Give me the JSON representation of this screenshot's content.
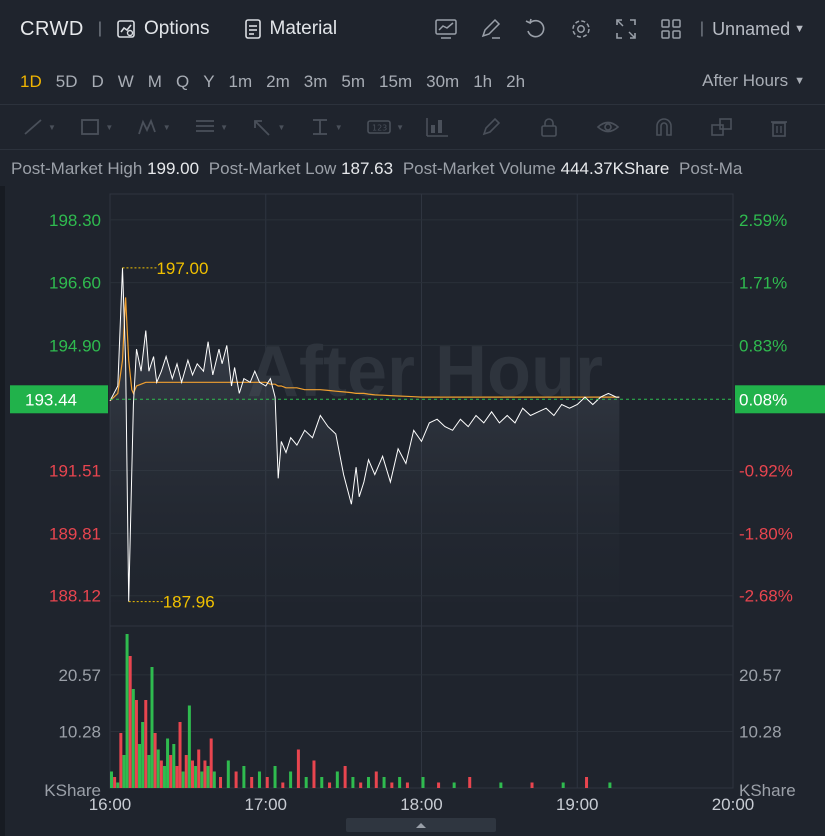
{
  "header": {
    "ticker": "CRWD",
    "options_label": "Options",
    "material_label": "Material",
    "layout_name": "Unnamed",
    "icons": [
      "indicator-icon",
      "draw-icon",
      "refresh-icon",
      "settings-icon",
      "fullscreen-icon",
      "layout-grid-icon"
    ]
  },
  "periods": {
    "items": [
      "1D",
      "5D",
      "D",
      "W",
      "M",
      "Q",
      "Y",
      "1m",
      "2m",
      "3m",
      "5m",
      "15m",
      "30m",
      "1h",
      "2h"
    ],
    "active": "1D",
    "session_label": "After Hours"
  },
  "drawing_tools": [
    "line-tool-icon",
    "rectangle-tool-icon",
    "pattern-tool-icon",
    "fib-tool-icon",
    "arrow-tool-icon",
    "measure-tool-icon",
    "price-label-tool-icon",
    "position-tool-icon",
    "pencil-icon",
    "lock-icon",
    "eye-icon",
    "magnet-icon",
    "copy-icon",
    "trash-icon"
  ],
  "stats": {
    "high_label": "Post-Market High",
    "high_value": "199.00",
    "low_label": "Post-Market Low",
    "low_value": "187.63",
    "volume_label": "Post-Market Volume",
    "volume_value": "444.37KShare",
    "more_label": "Post-Ma"
  },
  "colors": {
    "background": "#1f242d",
    "up": "#2fbb4f",
    "down": "#e8454f",
    "price_line": "#ffffff",
    "avg_line": "#f0a030",
    "marker": "#f0c000",
    "current_price_bg": "#21b24b"
  },
  "chart_data": {
    "type": "line",
    "watermark": "After Hour",
    "x_ticks": [
      "16:00",
      "17:00",
      "18:00",
      "19:00",
      "20:00"
    ],
    "price_ticks_left": [
      "198.30",
      "196.60",
      "194.90",
      "191.51",
      "189.81",
      "188.12"
    ],
    "pct_ticks_right": [
      "2.59%",
      "1.71%",
      "0.83%",
      "-0.92%",
      "-1.80%",
      "-2.68%"
    ],
    "current_price": "193.44",
    "current_pct": "0.08%",
    "high_marker": "197.00",
    "low_marker": "187.96",
    "volume_ticks": [
      "20.57",
      "10.28"
    ],
    "volume_unit": "KShare",
    "price_series": {
      "x_hours": [
        16.0,
        16.05,
        16.08,
        16.1,
        16.12,
        16.14,
        16.15,
        16.17,
        16.2,
        16.23,
        16.25,
        16.28,
        16.3,
        16.33,
        16.36,
        16.4,
        16.43,
        16.46,
        16.5,
        16.53,
        16.56,
        16.6,
        16.63,
        16.66,
        16.7,
        16.72,
        16.75,
        16.78,
        16.8,
        16.83,
        16.86,
        16.9,
        16.93,
        16.96,
        17.0,
        17.03,
        17.06,
        17.08,
        17.1,
        17.13,
        17.16,
        17.2,
        17.25,
        17.3,
        17.35,
        17.4,
        17.45,
        17.5,
        17.55,
        17.58,
        17.6,
        17.63,
        17.66,
        17.7,
        17.75,
        17.8,
        17.85,
        17.9,
        17.95,
        18.0,
        18.05,
        18.1,
        18.15,
        18.2,
        18.25,
        18.3,
        18.35,
        18.4,
        18.45,
        18.5,
        18.55,
        18.6,
        18.65,
        18.7,
        18.75,
        18.8,
        18.85,
        18.9,
        18.95,
        19.0,
        19.05,
        19.1,
        19.15,
        19.2,
        19.25,
        19.27
      ],
      "prices": [
        193.4,
        193.8,
        197.0,
        194.5,
        187.96,
        191.5,
        193.3,
        194.8,
        194.2,
        195.3,
        194.2,
        194.6,
        193.9,
        194.2,
        194.6,
        194.0,
        194.4,
        193.9,
        194.5,
        194.1,
        194.4,
        194.2,
        195.0,
        194.1,
        194.8,
        194.4,
        194.9,
        193.8,
        194.3,
        193.6,
        194.0,
        193.9,
        194.2,
        193.9,
        193.8,
        194.0,
        193.5,
        191.3,
        192.3,
        192.0,
        192.4,
        192.2,
        192.6,
        192.4,
        193.0,
        192.7,
        192.5,
        191.4,
        190.6,
        191.6,
        190.8,
        191.2,
        191.8,
        191.4,
        191.9,
        191.2,
        192.1,
        191.7,
        192.6,
        192.3,
        192.8,
        192.9,
        192.7,
        192.6,
        192.9,
        192.7,
        193.0,
        192.8,
        193.1,
        192.8,
        193.0,
        192.8,
        193.2,
        193.0,
        193.1,
        193.2,
        193.0,
        193.3,
        193.2,
        193.3,
        193.5,
        193.3,
        193.5,
        193.6,
        193.5,
        193.5
      ],
      "avg_prices": [
        193.4,
        193.6,
        194.5,
        196.2,
        194.5,
        193.7,
        193.6,
        193.8,
        193.85,
        193.9,
        193.9,
        193.9,
        193.9,
        193.9,
        193.9,
        193.9,
        193.9,
        193.9,
        193.9,
        193.9,
        193.9,
        193.9,
        193.9,
        193.9,
        193.9,
        193.9,
        193.9,
        193.9,
        193.9,
        193.9,
        193.9,
        193.9,
        193.9,
        193.9,
        193.9,
        193.85,
        193.85,
        193.8,
        193.8,
        193.75,
        193.75,
        193.75,
        193.7,
        193.7,
        193.7,
        193.68,
        193.66,
        193.64,
        193.62,
        193.6,
        193.6,
        193.6,
        193.58,
        193.56,
        193.55,
        193.54,
        193.53,
        193.52,
        193.51,
        193.5,
        193.5,
        193.5,
        193.5,
        193.5,
        193.5,
        193.5,
        193.5,
        193.5,
        193.5,
        193.5,
        193.5,
        193.5,
        193.5,
        193.5,
        193.5,
        193.5,
        193.5,
        193.5,
        193.5,
        193.5,
        193.5,
        193.5,
        193.5,
        193.5,
        193.5,
        193.5
      ]
    },
    "volume_series": {
      "x_hours": [
        16.0,
        16.02,
        16.04,
        16.06,
        16.08,
        16.1,
        16.12,
        16.14,
        16.16,
        16.18,
        16.2,
        16.22,
        16.24,
        16.26,
        16.28,
        16.3,
        16.32,
        16.34,
        16.36,
        16.38,
        16.4,
        16.42,
        16.44,
        16.46,
        16.48,
        16.5,
        16.52,
        16.54,
        16.56,
        16.58,
        16.6,
        16.62,
        16.64,
        16.66,
        16.7,
        16.75,
        16.8,
        16.85,
        16.9,
        16.95,
        17.0,
        17.05,
        17.1,
        17.15,
        17.2,
        17.25,
        17.3,
        17.35,
        17.4,
        17.45,
        17.5,
        17.55,
        17.6,
        17.65,
        17.7,
        17.75,
        17.8,
        17.85,
        17.9,
        18.0,
        18.1,
        18.2,
        18.3,
        18.5,
        18.7,
        18.9,
        19.05,
        19.2
      ],
      "volumes": [
        3,
        2,
        1,
        10,
        6,
        28,
        24,
        18,
        16,
        8,
        12,
        16,
        6,
        22,
        10,
        7,
        5,
        4,
        9,
        6,
        8,
        4,
        12,
        3,
        6,
        15,
        5,
        4,
        7,
        3,
        5,
        4,
        9,
        3,
        2,
        5,
        3,
        4,
        2,
        3,
        2,
        4,
        1,
        3,
        7,
        2,
        5,
        2,
        1,
        3,
        4,
        2,
        1,
        2,
        3,
        2,
        1,
        2,
        1,
        2,
        1,
        1,
        2,
        1,
        1,
        1,
        2,
        1
      ],
      "colors": [
        "g",
        "r",
        "g",
        "r",
        "g",
        "g",
        "r",
        "g",
        "r",
        "g",
        "g",
        "r",
        "g",
        "g",
        "r",
        "g",
        "r",
        "g",
        "g",
        "r",
        "g",
        "r",
        "r",
        "g",
        "r",
        "g",
        "r",
        "g",
        "r",
        "g",
        "r",
        "g",
        "r",
        "g",
        "r",
        "g",
        "r",
        "g",
        "r",
        "g",
        "r",
        "g",
        "r",
        "g",
        "r",
        "g",
        "r",
        "g",
        "r",
        "g",
        "r",
        "g",
        "r",
        "g",
        "r",
        "g",
        "r",
        "g",
        "r",
        "g",
        "r",
        "g",
        "r",
        "g",
        "r",
        "g",
        "r",
        "g"
      ]
    },
    "x_range_hours": [
      16,
      20
    ],
    "price_range": [
      187.3,
      199.0
    ],
    "volume_range": [
      0,
      28
    ]
  }
}
